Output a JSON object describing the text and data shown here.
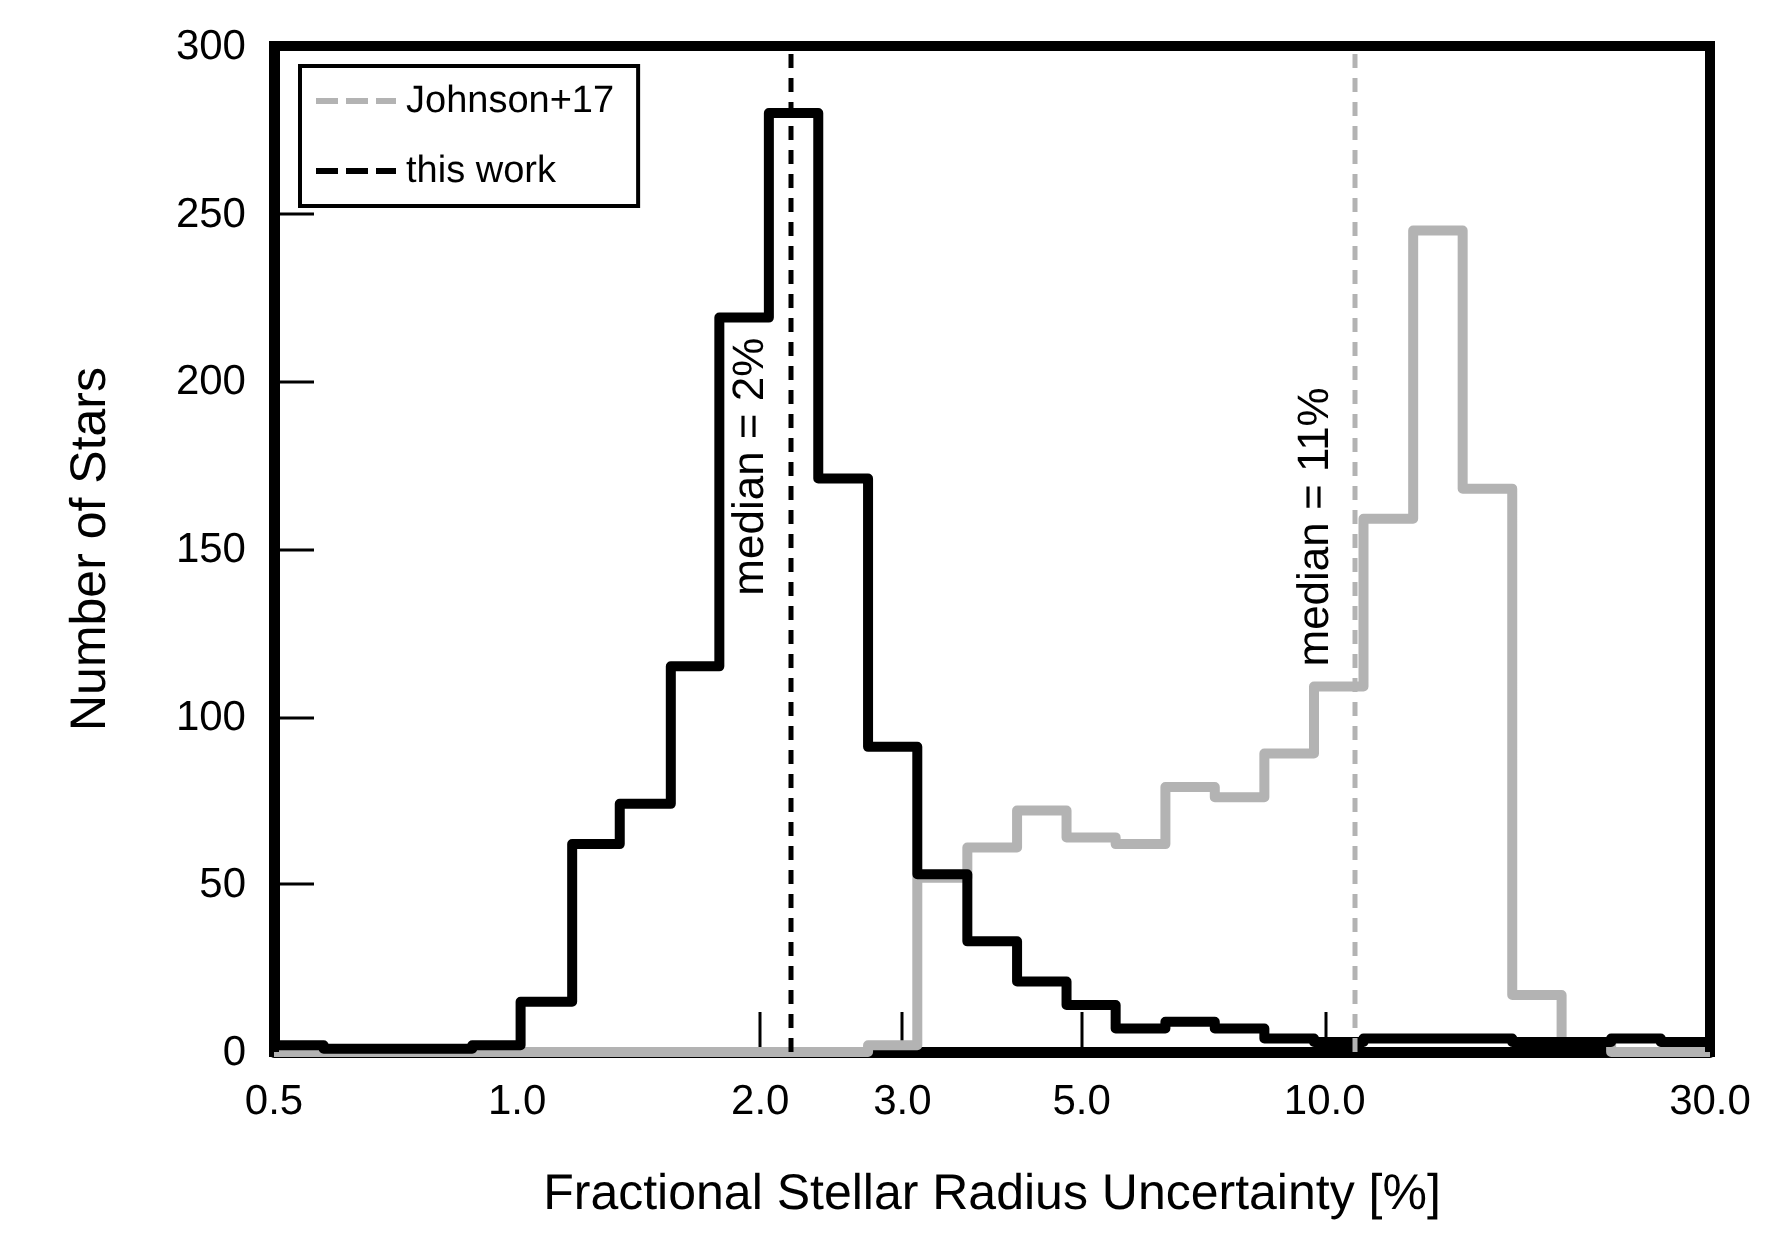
{
  "chart_data": {
    "type": "histogram",
    "xlabel": "Fractional Stellar Radius Uncertainty [%]",
    "ylabel": "Number of Stars",
    "bins": [
      0.5,
      0.576,
      0.663,
      0.764,
      0.88,
      1.01,
      1.17,
      1.34,
      1.55,
      1.78,
      2.05,
      2.36,
      2.72,
      3.13,
      3.61,
      4.16,
      4.79,
      5.51,
      6.35,
      7.31,
      8.42,
      9.7,
      11.17,
      12.87,
      14.82,
      17.07,
      19.65,
      22.63,
      26.07,
      30
    ],
    "series": [
      {
        "name": "Johnson+17",
        "color": "#b3b3b3",
        "values": [
          0,
          0,
          0,
          0,
          0,
          0,
          0,
          0,
          0,
          0,
          0,
          0,
          2,
          52,
          61,
          72,
          64,
          62,
          79,
          76,
          89,
          109,
          159,
          245,
          168,
          17,
          3,
          0,
          0
        ]
      },
      {
        "name": "this work",
        "color": "#000000",
        "values": [
          2,
          1,
          1,
          1,
          2,
          15,
          62,
          74,
          115,
          219,
          280,
          171,
          91,
          53,
          33,
          21,
          14,
          7,
          9,
          7,
          4,
          3,
          4,
          4,
          4,
          3,
          3,
          4,
          3
        ]
      }
    ],
    "ref_lines": [
      {
        "axis": "x",
        "value": 10.9,
        "label": "median = 11%",
        "color": "#b3b3b3",
        "line_style": "dashed"
      },
      {
        "axis": "x",
        "value": 2.18,
        "label": "median = 2%",
        "color": "#000000",
        "line_style": "dashed"
      }
    ],
    "log": "x",
    "xlim": [
      0.5,
      30
    ],
    "xticks": [
      {
        "value": 0.5,
        "label": "0.5"
      },
      {
        "value": 1,
        "label": "1.0"
      },
      {
        "value": 2,
        "label": "2.0"
      },
      {
        "value": 3,
        "label": "3.0"
      },
      {
        "value": 5,
        "label": "5.0"
      },
      {
        "value": 10,
        "label": "10.0"
      },
      {
        "value": 30,
        "label": "30.0"
      }
    ],
    "ylim": [
      0,
      300
    ],
    "yticks": [
      0,
      50,
      100,
      150,
      200,
      250,
      300
    ],
    "grid": false,
    "legend": "top left"
  }
}
